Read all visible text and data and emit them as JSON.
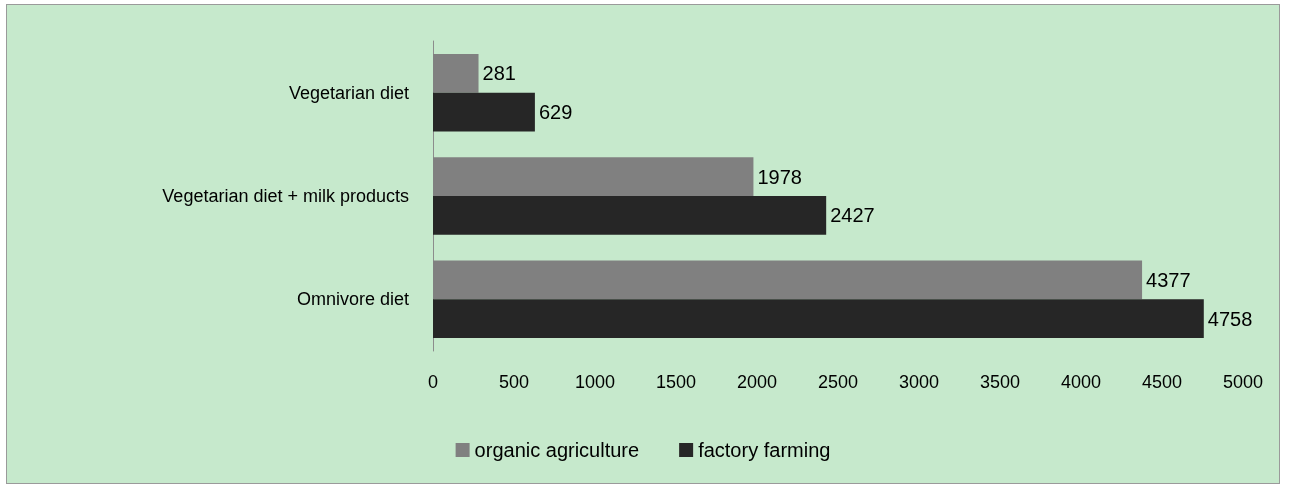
{
  "chart_data": {
    "type": "bar",
    "orientation": "horizontal",
    "categories": [
      "Vegetarian diet",
      "Vegetarian diet + milk products",
      "Omnivore diet"
    ],
    "series": [
      {
        "name": "organic agriculture",
        "color": "#808080",
        "values": [
          281,
          1978,
          4377
        ]
      },
      {
        "name": "factory farming",
        "color": "#262626",
        "values": [
          629,
          2427,
          4758
        ]
      }
    ],
    "xlim": [
      0,
      5000
    ],
    "xticks": [
      0,
      500,
      1000,
      1500,
      2000,
      2500,
      3000,
      3500,
      4000,
      4500,
      5000
    ],
    "grid": false,
    "legend": "bottom",
    "data_labels": true
  }
}
